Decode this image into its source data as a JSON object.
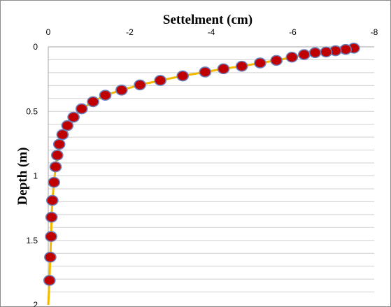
{
  "chart_data": {
    "type": "line",
    "title": "",
    "xlabel": "Settelment (cm)",
    "ylabel": "Depth (m)",
    "xlim": [
      0,
      -8
    ],
    "ylim": [
      0,
      2
    ],
    "x_ticks": [
      "0",
      "-2",
      "-4",
      "-6",
      "-8"
    ],
    "y_ticks": [
      "0",
      "0.5",
      "1",
      "1.5",
      "2"
    ],
    "x_axis_position": "top",
    "y_axis_reversed": true,
    "grid": "horizontal",
    "legend": "none",
    "series": [
      {
        "line_color": "#f5b800",
        "marker_color": "#c00000",
        "marker_edge": "#6b7fb8",
        "points": [
          {
            "x": -7.5,
            "y": 0.01
          },
          {
            "x": -7.3,
            "y": 0.02
          },
          {
            "x": -7.05,
            "y": 0.03
          },
          {
            "x": -6.82,
            "y": 0.04
          },
          {
            "x": -6.55,
            "y": 0.045
          },
          {
            "x": -6.28,
            "y": 0.06
          },
          {
            "x": -5.98,
            "y": 0.08
          },
          {
            "x": -5.6,
            "y": 0.105
          },
          {
            "x": -5.2,
            "y": 0.125
          },
          {
            "x": -4.75,
            "y": 0.15
          },
          {
            "x": -4.3,
            "y": 0.17
          },
          {
            "x": -3.85,
            "y": 0.195
          },
          {
            "x": -3.3,
            "y": 0.225
          },
          {
            "x": -2.75,
            "y": 0.26
          },
          {
            "x": -2.25,
            "y": 0.295
          },
          {
            "x": -1.8,
            "y": 0.335
          },
          {
            "x": -1.4,
            "y": 0.375
          },
          {
            "x": -1.1,
            "y": 0.425
          },
          {
            "x": -0.82,
            "y": 0.48
          },
          {
            "x": -0.62,
            "y": 0.545
          },
          {
            "x": -0.47,
            "y": 0.61
          },
          {
            "x": -0.35,
            "y": 0.68
          },
          {
            "x": -0.27,
            "y": 0.755
          },
          {
            "x": -0.22,
            "y": 0.84
          },
          {
            "x": -0.18,
            "y": 0.93
          },
          {
            "x": -0.14,
            "y": 1.05
          },
          {
            "x": -0.1,
            "y": 1.19
          },
          {
            "x": -0.08,
            "y": 1.32
          },
          {
            "x": -0.07,
            "y": 1.47
          },
          {
            "x": -0.05,
            "y": 1.63
          },
          {
            "x": -0.03,
            "y": 1.81
          }
        ]
      }
    ]
  }
}
